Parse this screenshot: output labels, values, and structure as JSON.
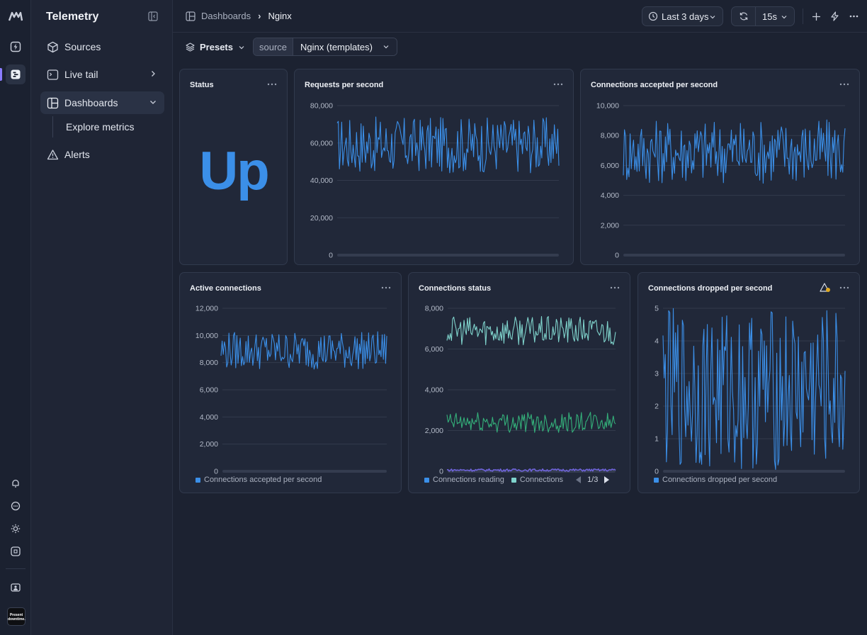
{
  "app": {
    "title": "Telemetry"
  },
  "sidebar": {
    "items": [
      {
        "label": "Sources",
        "icon": "cube-icon"
      },
      {
        "label": "Live tail",
        "icon": "terminal-icon"
      },
      {
        "label": "Dashboards",
        "icon": "dashboard-icon"
      },
      {
        "label": "Explore metrics"
      },
      {
        "label": "Alerts",
        "icon": "alert-triangle-icon"
      }
    ]
  },
  "rail": {
    "badge_line1": "Present",
    "badge_line2": "downtime."
  },
  "breadcrumb": {
    "root": "Dashboards",
    "current": "Nginx"
  },
  "toolbar": {
    "time_range": "Last 3 days",
    "refresh_interval": "15s"
  },
  "filters": {
    "presets_label": "Presets",
    "source_key": "source",
    "source_value": "Nginx (templates)"
  },
  "panels": {
    "status": {
      "title": "Status",
      "value": "Up"
    },
    "rps": {
      "title": "Requests per second"
    },
    "cap": {
      "title": "Connections accepted per second"
    },
    "active": {
      "title": "Active connections",
      "legend": "Connections accepted per second"
    },
    "cstatus": {
      "title": "Connections status",
      "legend1": "Connections reading",
      "legend2": "Connections",
      "page": "1/3"
    },
    "dropped": {
      "title": "Connections dropped per second",
      "legend": "Connections dropped per second"
    }
  },
  "colors": {
    "accent": "#3b8fe8",
    "teal": "#7fd3cc",
    "green": "#34b07a",
    "purple": "#6e63d9"
  },
  "chart_data": [
    {
      "type": "line",
      "id": "rps",
      "title": "Requests per second",
      "ylim": [
        0,
        80000
      ],
      "yticks": [
        0,
        20000,
        40000,
        60000,
        80000
      ],
      "tick_labels": [
        "0",
        "20,000",
        "40,000",
        "60,000",
        "80,000"
      ],
      "series": [
        {
          "values_range": [
            44000,
            74000
          ]
        }
      ]
    },
    {
      "type": "line",
      "id": "cap",
      "title": "Connections accepted per second",
      "ylim": [
        0,
        10000
      ],
      "yticks": [
        0,
        2000,
        4000,
        6000,
        8000,
        10000
      ],
      "tick_labels": [
        "0",
        "2,000",
        "4,000",
        "6,000",
        "8,000",
        "10,000"
      ],
      "series": [
        {
          "values_range": [
            4800,
            9100
          ]
        }
      ]
    },
    {
      "type": "line",
      "id": "active",
      "title": "Active connections",
      "ylim": [
        0,
        12000
      ],
      "yticks": [
        0,
        2000,
        4000,
        6000,
        8000,
        10000,
        12000
      ],
      "tick_labels": [
        "0",
        "2,000",
        "4,000",
        "6,000",
        "8,000",
        "10,000",
        "12,000"
      ],
      "series": [
        {
          "name": "Connections accepted per second",
          "values_range": [
            7500,
            10300
          ]
        }
      ]
    },
    {
      "type": "line",
      "id": "cstatus",
      "title": "Connections status",
      "ylim": [
        0,
        8000
      ],
      "yticks": [
        0,
        2000,
        4000,
        6000,
        8000
      ],
      "tick_labels": [
        "0",
        "2,000",
        "4,000",
        "6,000",
        "8,000"
      ],
      "series": [
        {
          "name": "Connections reading",
          "values_range": [
            0,
            120
          ]
        },
        {
          "name": "Connections",
          "values_range": [
            1900,
            2900
          ]
        },
        {
          "values_range": [
            6200,
            7600
          ]
        }
      ]
    },
    {
      "type": "line",
      "id": "dropped",
      "title": "Connections dropped per second",
      "ylim": [
        0,
        5
      ],
      "yticks": [
        0,
        1,
        2,
        3,
        4,
        5
      ],
      "tick_labels": [
        "0",
        "1",
        "2",
        "3",
        "4",
        "5"
      ],
      "series": [
        {
          "name": "Connections dropped per second",
          "values_range": [
            0,
            5
          ]
        }
      ]
    }
  ]
}
